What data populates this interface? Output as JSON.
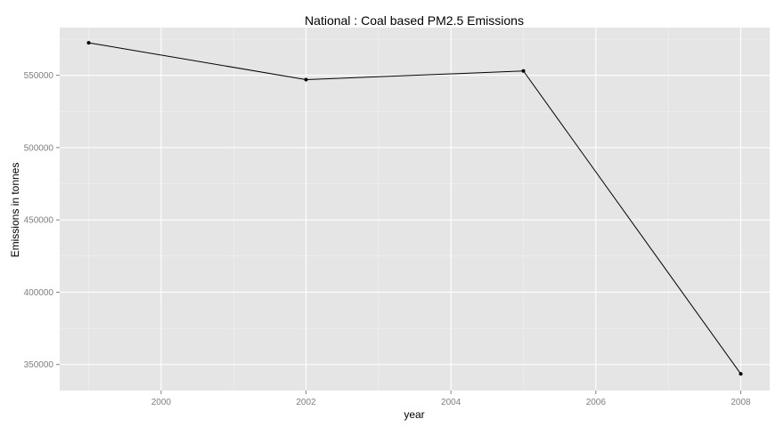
{
  "chart_data": {
    "type": "line",
    "title": "National : Coal based PM2.5 Emissions",
    "xlabel": "year",
    "ylabel": "Emissions in tonnes",
    "x": [
      1999,
      2002,
      2005,
      2008
    ],
    "series": [
      {
        "values": [
          572500,
          547000,
          553000,
          343500
        ]
      }
    ],
    "xlim": [
      1998.6,
      2008.4
    ],
    "ylim": [
      332000,
      583000
    ],
    "xticks": [
      2000,
      2002,
      2004,
      2006,
      2008
    ],
    "xtick_labels": [
      "2000",
      "2002",
      "2004",
      "2006",
      "2008"
    ],
    "yticks": [
      350000,
      400000,
      450000,
      500000,
      550000
    ],
    "ytick_labels": [
      "350000",
      "400000",
      "450000",
      "500000",
      "550000"
    ],
    "grid": true,
    "legend": "none",
    "colors": {
      "panel": "#e5e5e5",
      "grid": "#ffffff",
      "line": "#000000",
      "tick_text": "#7f7f7f"
    }
  }
}
